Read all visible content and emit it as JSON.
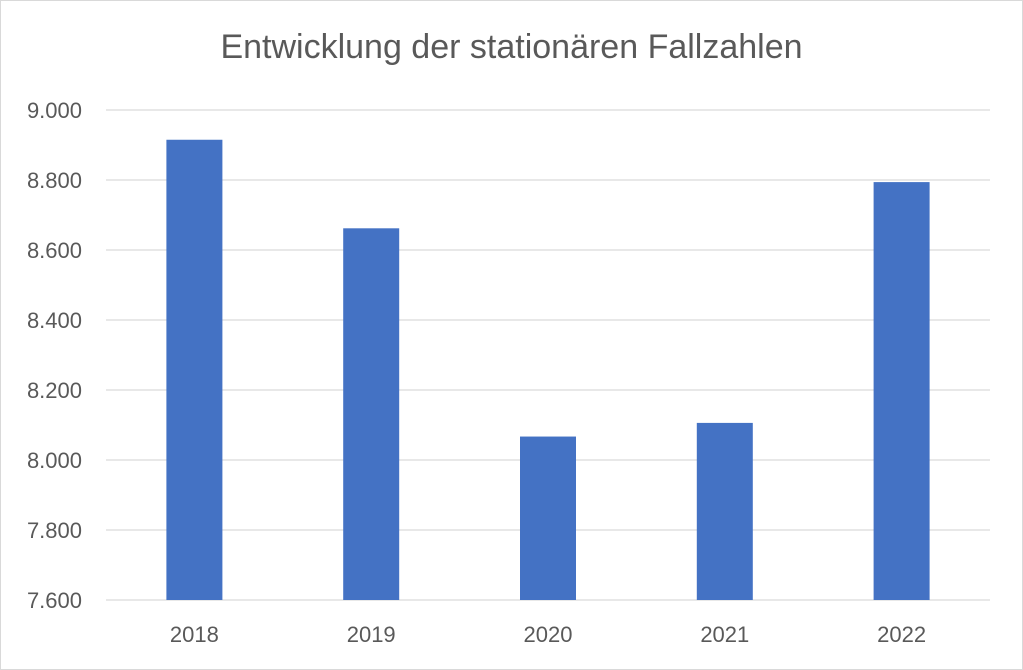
{
  "chart_data": {
    "type": "bar",
    "title": "Entwicklung der stationären Fallzahlen",
    "xlabel": "",
    "ylabel": "",
    "categories": [
      "2018",
      "2019",
      "2020",
      "2021",
      "2022"
    ],
    "values": [
      8915,
      8662,
      8067,
      8106,
      8794
    ],
    "ylim": [
      7600,
      9000
    ],
    "y_ticks": [
      "7.600",
      "7.800",
      "8.000",
      "8.200",
      "8.400",
      "8.600",
      "8.800",
      "9.000"
    ],
    "grid": true,
    "legend": "none",
    "bar_color": "#4472c4",
    "gridline_color": "#d9d9d9"
  }
}
